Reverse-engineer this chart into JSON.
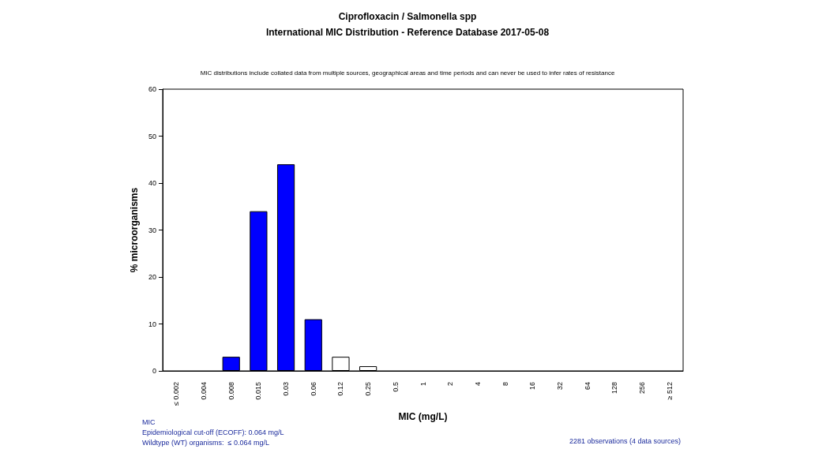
{
  "chart_data": {
    "type": "bar",
    "title": "Ciprofloxacin / Salmonella spp",
    "subtitle": "International MIC Distribution - Reference Database 2017-05-08",
    "xlabel": "MIC (mg/L)",
    "ylabel": "% microorganisms",
    "categories": [
      "≤ 0.002",
      "0.004",
      "0.008",
      "0.015",
      "0.03",
      "0.06",
      "0.12",
      "0.25",
      "0.5",
      "1",
      "2",
      "4",
      "8",
      "16",
      "32",
      "64",
      "128",
      "256",
      "≥ 512"
    ],
    "values": [
      0,
      0,
      3,
      34,
      44,
      11,
      3,
      1,
      0,
      0,
      0,
      0,
      0,
      0,
      0,
      0,
      0,
      0,
      0
    ],
    "colors": [
      "#0000ff",
      "#0000ff",
      "#0000ff",
      "#0000ff",
      "#0000ff",
      "#0000ff",
      "#ffffff",
      "#ffffff",
      "#ffffff",
      "#ffffff",
      "#ffffff",
      "#ffffff",
      "#ffffff",
      "#ffffff",
      "#ffffff",
      "#ffffff",
      "#ffffff",
      "#ffffff",
      "#ffffff"
    ],
    "ylim": [
      0,
      60
    ],
    "yticks": [
      0,
      10,
      20,
      30,
      40,
      50,
      60
    ],
    "grid": false,
    "annotations": [
      "MIC distributions include collated data from multiple sources, geographical areas and time periods and can never be used to infer rates of resistance",
      "MIC\nEpidemiological cut-off (ECOFF): 0.064 mg/L\nWildtype (WT) organisms:  ≤ 0.064 mg/L",
      "2281 observations (4 data sources)"
    ]
  }
}
